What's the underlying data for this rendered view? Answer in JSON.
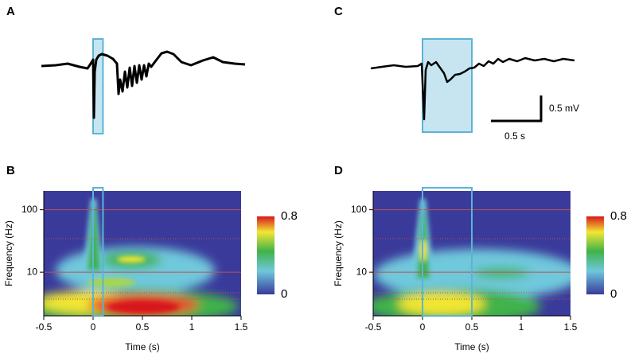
{
  "panels": [
    "A",
    "B",
    "C",
    "D"
  ],
  "scale_bar": {
    "y_label": "0.5 mV",
    "x_label": "0.5 s"
  },
  "chart_data": [
    {
      "type": "heatmap",
      "xlabel": "Time (s)",
      "ylabel": "Frequency (Hz)",
      "xlim": [
        -0.5,
        1.5
      ],
      "xticks": [
        -0.5,
        0,
        0.5,
        1,
        1.5
      ],
      "ylim": [
        2,
        200
      ],
      "yticks": [
        10,
        100
      ],
      "log_y": true,
      "grid": true,
      "grid_color": "#c0504d",
      "window": [
        0,
        0.1
      ],
      "window_color": "#5bb4d6",
      "colorbar": {
        "lim": [
          0,
          0.8
        ],
        "ticks": [
          0,
          0.8
        ]
      }
    },
    {
      "type": "heatmap",
      "xlabel": "Time (s)",
      "ylabel": "Frequency (Hz)",
      "xlim": [
        -0.5,
        1.5
      ],
      "xticks": [
        -0.5,
        0,
        0.5,
        1,
        1.5
      ],
      "ylim": [
        2,
        200
      ],
      "yticks": [
        10,
        100
      ],
      "log_y": true,
      "grid": true,
      "grid_color": "#c0504d",
      "window": [
        0,
        0.5
      ],
      "window_color": "#5bb4d6",
      "colorbar": {
        "lim": [
          0,
          0.8
        ],
        "ticks": [
          0,
          0.8
        ]
      }
    }
  ]
}
